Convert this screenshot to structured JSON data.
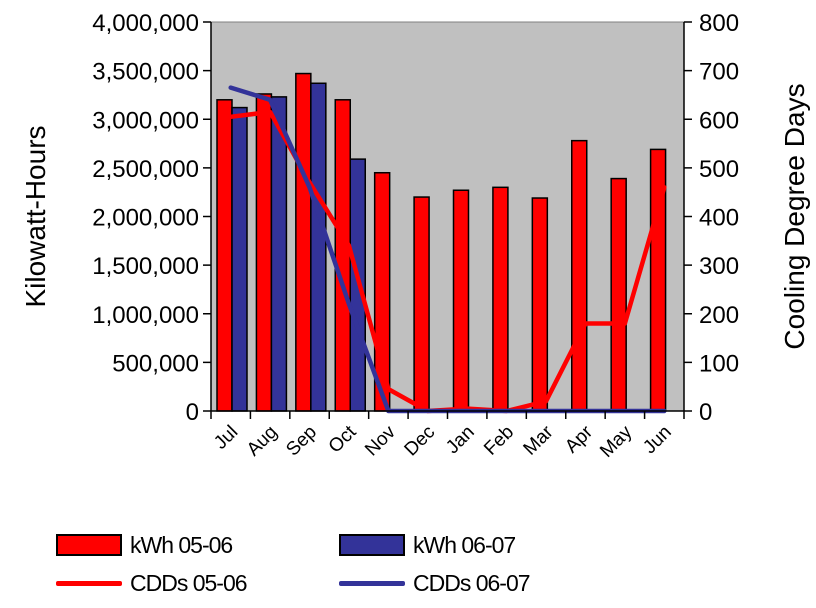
{
  "chart_data": {
    "type": "bar",
    "categories": [
      "Jul",
      "Aug",
      "Sep",
      "Oct",
      "Nov",
      "Dec",
      "Jan",
      "Feb",
      "Mar",
      "Apr",
      "May",
      "Jun"
    ],
    "bar_series": [
      {
        "name": "kWh 05-06",
        "color": "#ff0000",
        "values": [
          3200000,
          3260000,
          3470000,
          3200000,
          2450000,
          2200000,
          2270000,
          2300000,
          2190000,
          2780000,
          2390000,
          2690000
        ]
      },
      {
        "name": "kWh 06-07",
        "color": "#333399",
        "values": [
          3120000,
          3230000,
          3370000,
          2590000,
          null,
          null,
          null,
          null,
          null,
          null,
          null,
          null
        ]
      }
    ],
    "line_series": [
      {
        "name": "CDDs 05-06",
        "color": "#ff0000",
        "axis": "right",
        "values": [
          605,
          615,
          470,
          340,
          45,
          0,
          5,
          0,
          20,
          180,
          180,
          460
        ]
      },
      {
        "name": "CDDs 06-07",
        "color": "#333399",
        "axis": "right",
        "values": [
          665,
          640,
          460,
          220,
          0,
          0,
          0,
          0,
          0,
          0,
          0,
          0
        ]
      }
    ],
    "ylabel": "Kilowatt-Hours",
    "y2label": "Cooling Degree Days",
    "ylim": [
      0,
      4000000
    ],
    "y2lim": [
      0,
      800
    ],
    "yticks": [
      "0",
      "500,000",
      "1,000,000",
      "1,500,000",
      "2,000,000",
      "2,500,000",
      "3,000,000",
      "3,500,000",
      "4,000,000"
    ],
    "y2ticks": [
      "0",
      "100",
      "200",
      "300",
      "400",
      "500",
      "600",
      "700",
      "800"
    ],
    "plot_background": "#c0c0c0",
    "grid": false,
    "legend_position": "bottom"
  }
}
